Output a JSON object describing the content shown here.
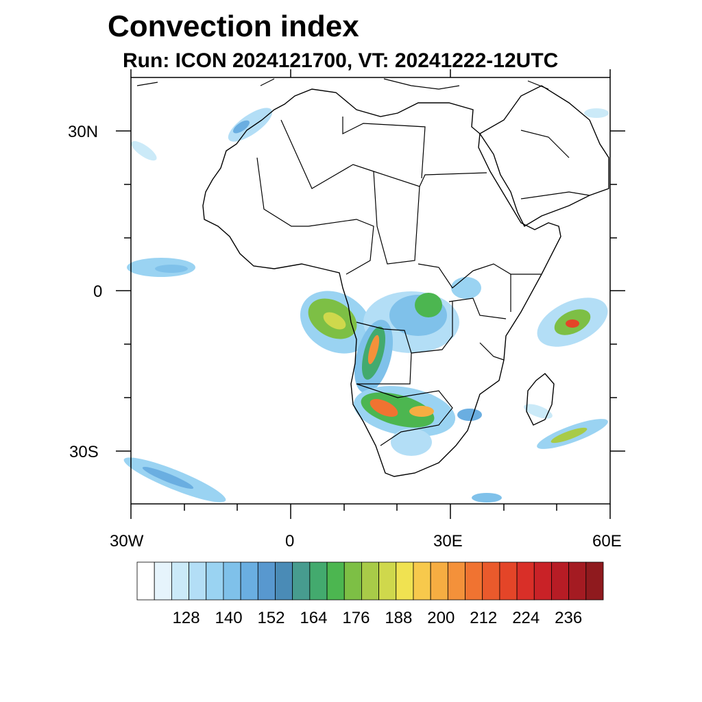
{
  "title": "Convection index",
  "subtitle": "Run: ICON 2024121700,  VT: 20241222-12UTC",
  "map": {
    "lon_range": [
      -30,
      60
    ],
    "lat_range": [
      -40,
      40
    ],
    "lat_ticks": [
      {
        "value": 30,
        "label": "30N"
      },
      {
        "value": 0,
        "label": "0"
      },
      {
        "value": -30,
        "label": "30S"
      }
    ],
    "lon_ticks": [
      {
        "value": -30,
        "label": "30W"
      },
      {
        "value": 0,
        "label": "0"
      },
      {
        "value": 30,
        "label": "30E"
      },
      {
        "value": 60,
        "label": "60E"
      }
    ]
  },
  "colorbar": {
    "labels": [
      "128",
      "140",
      "152",
      "164",
      "176",
      "188",
      "200",
      "212",
      "224",
      "236"
    ],
    "colors": [
      "#ffffff",
      "#e6f4fc",
      "#cbeaf8",
      "#b3def6",
      "#9ad3f2",
      "#7fc1ea",
      "#6aaee1",
      "#5898cf",
      "#4a8bb6",
      "#479c8f",
      "#43aa6e",
      "#4cb650",
      "#7dbf45",
      "#a8cb48",
      "#cfd84c",
      "#f0e251",
      "#f7c94c",
      "#f6ad42",
      "#f4913a",
      "#f07331",
      "#ea5a2c",
      "#e44528",
      "#d92f28",
      "#c92227",
      "#b71c25",
      "#a41b22",
      "#8f1a1e"
    ]
  }
}
